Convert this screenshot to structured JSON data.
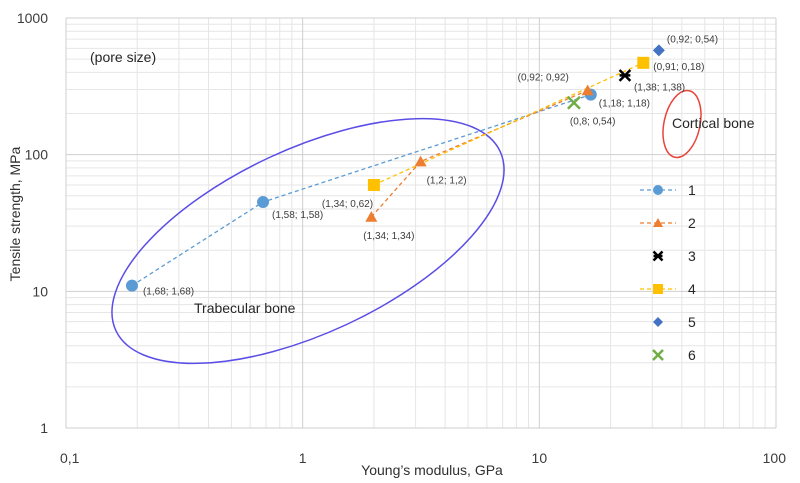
{
  "chart_data": {
    "type": "scatter",
    "title": "",
    "xlabel": "Young’s modulus, GPa",
    "ylabel": "Tensile strength, MPa",
    "x_scale": "log",
    "y_scale": "log",
    "xlim": [
      0.1,
      100
    ],
    "ylim": [
      1,
      1000
    ],
    "x_tick_labels": [
      "0,1",
      "1",
      "10",
      "100"
    ],
    "y_tick_labels": [
      "1",
      "10",
      "100",
      "1000"
    ],
    "grid": true,
    "annotation": "(pore size)",
    "series": [
      {
        "name": "1",
        "color": "#5b9bd5",
        "marker": "circle",
        "line": true,
        "x": [
          0.19,
          0.68,
          16.5
        ],
        "y": [
          11,
          45,
          275
        ]
      },
      {
        "name": "2",
        "color": "#ed7d31",
        "marker": "triangle",
        "line": true,
        "x": [
          1.95,
          3.15,
          16.0
        ],
        "y": [
          35,
          89,
          295
        ]
      },
      {
        "name": "3",
        "color": "#000000",
        "marker": "star",
        "line": false,
        "x": [
          23.0
        ],
        "y": [
          380
        ]
      },
      {
        "name": "4",
        "color": "#ffc000",
        "marker": "square",
        "line": true,
        "x": [
          2.0,
          27.5
        ],
        "y": [
          60,
          470
        ]
      },
      {
        "name": "5",
        "color": "#4472c4",
        "marker": "diamond",
        "line": false,
        "x": [
          32.0
        ],
        "y": [
          580
        ]
      },
      {
        "name": "6",
        "color": "#70ad47",
        "marker": "x",
        "line": false,
        "x": [
          14.0
        ],
        "y": [
          240
        ]
      }
    ],
    "point_labels": [
      {
        "text": "(1,68; 1,68)",
        "x": 0.19,
        "y": 11
      },
      {
        "text": "(1,58; 1,58)",
        "x": 0.68,
        "y": 45
      },
      {
        "text": "(1,34; 1,34)",
        "x": 1.95,
        "y": 35
      },
      {
        "text": "(1,34; 0,62)",
        "x": 2.0,
        "y": 60
      },
      {
        "text": "(1,2; 1,2)",
        "x": 3.15,
        "y": 89
      },
      {
        "text": "(0,92; 0,92)",
        "x": 16.0,
        "y": 295
      },
      {
        "text": "(1,18; 1,18)",
        "x": 16.5,
        "y": 275
      },
      {
        "text": "(0,8; 0,54)",
        "x": 14.0,
        "y": 240
      },
      {
        "text": "(1,38; 1,38)",
        "x": 23.0,
        "y": 380
      },
      {
        "text": "(0,91; 0,18)",
        "x": 27.5,
        "y": 470
      },
      {
        "text": "(0,92; 0,54)",
        "x": 32.0,
        "y": 580
      }
    ],
    "regions": [
      {
        "name": "Trabecular bone",
        "color": "#5b4de6"
      },
      {
        "name": "Cortical bone",
        "color": "#e8443a"
      }
    ],
    "legend_position": "right"
  }
}
